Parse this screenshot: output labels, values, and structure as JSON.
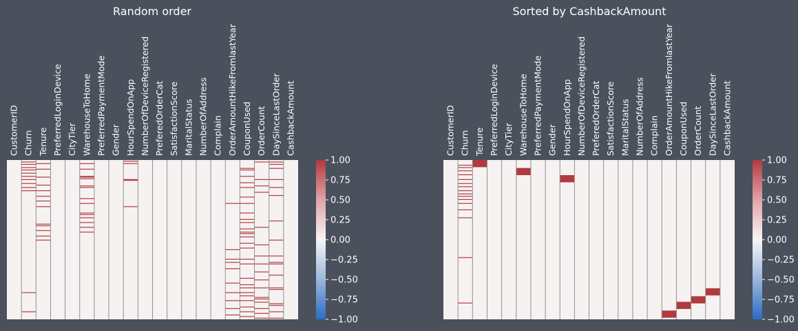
{
  "chart_data": [
    {
      "type": "heatmap",
      "title": "Random order",
      "columns": [
        "CustomerID",
        "Churn",
        "Tenure",
        "PreferredLoginDevice",
        "CityTier",
        "WarehouseToHome",
        "PreferredPaymentMode",
        "Gender",
        "HourSpendOnApp",
        "NumberOfDeviceRegistered",
        "PreferedOrderCat",
        "SatisfactionScore",
        "MaritalStatus",
        "NumberOfAddress",
        "Complain",
        "OrderAmountHikeFromlastYear",
        "CouponUsed",
        "OrderCount",
        "DaySinceLastOrder",
        "CashbackAmount"
      ],
      "row_range": [
        0,
        1
      ],
      "missing_rows": {
        "Churn": [
          0.01,
          0.025,
          0.045,
          0.06,
          0.08,
          0.1,
          0.12,
          0.145,
          0.17,
          0.19,
          0.83,
          0.95
        ],
        "Tenure": [
          0.02,
          0.055,
          0.105,
          0.155,
          0.19,
          0.225,
          0.255,
          0.29,
          0.4,
          0.41,
          0.44,
          0.475,
          0.5
        ],
        "WarehouseToHome": [
          0.02,
          0.055,
          0.1,
          0.105,
          0.115,
          0.16,
          0.17,
          0.24,
          0.27,
          0.33,
          0.34,
          0.36,
          0.39,
          0.42,
          0.45
        ],
        "HourSpendOnApp": [
          0.005,
          0.02,
          0.12,
          0.125,
          0.29
        ],
        "OrderAmountHikeFromlastYear": [
          0.27,
          0.56,
          0.62,
          0.64,
          0.68,
          0.77,
          0.83,
          0.88,
          0.93,
          0.97
        ],
        "CouponUsed": [
          0.05,
          0.06,
          0.1,
          0.14,
          0.17,
          0.23,
          0.27,
          0.33,
          0.37,
          0.39,
          0.43,
          0.45,
          0.46,
          0.48,
          0.52,
          0.55,
          0.62,
          0.65,
          0.74,
          0.78,
          0.8,
          0.83,
          0.85,
          0.88,
          0.92,
          0.95,
          0.98
        ],
        "OrderCount": [
          0.01,
          0.12,
          0.16,
          0.2,
          0.42,
          0.53,
          0.6,
          0.65,
          0.7,
          0.75,
          0.8,
          0.86,
          0.87,
          0.89,
          0.93,
          0.96,
          0.99
        ],
        "DaySinceLastOrder": [
          0.01,
          0.025,
          0.05,
          0.12,
          0.17,
          0.22,
          0.38,
          0.5,
          0.6,
          0.64,
          0.65,
          0.72,
          0.8,
          0.81,
          0.9,
          0.91,
          0.95,
          0.99
        ]
      },
      "colorbar": {
        "range": [
          -1,
          1
        ],
        "ticks": [
          "1.00",
          "0.75",
          "0.50",
          "0.25",
          "0.00",
          "−0.25",
          "−0.50",
          "−0.75",
          "−1.00"
        ]
      }
    },
    {
      "type": "heatmap",
      "title": "Sorted by CashbackAmount",
      "columns": [
        "CustomerID",
        "Churn",
        "Tenure",
        "PreferredLoginDevice",
        "CityTier",
        "WarehouseToHome",
        "PreferredPaymentMode",
        "Gender",
        "HourSpendOnApp",
        "NumberOfDeviceRegistered",
        "PreferedOrderCat",
        "SatisfactionScore",
        "MaritalStatus",
        "NumberOfAddress",
        "Complain",
        "OrderAmountHikeFromlastYear",
        "CouponUsed",
        "OrderCount",
        "DaySinceLastOrder",
        "CashbackAmount"
      ],
      "row_range": [
        0,
        1
      ],
      "missing_rows": {
        "Churn": [
          0.03,
          0.045,
          0.065,
          0.09,
          0.12,
          0.145,
          0.165,
          0.19,
          0.21,
          0.225,
          0.245,
          0.27,
          0.31,
          0.36,
          0.61,
          0.895
        ],
        "Tenure": [
          [
            0.0,
            0.045
          ]
        ],
        "WarehouseToHome": [
          [
            0.05,
            0.095
          ]
        ],
        "HourSpendOnApp": [
          [
            0.095,
            0.14
          ]
        ],
        "OrderAmountHikeFromlastYear": [
          [
            0.945,
            0.99
          ]
        ],
        "CouponUsed": [
          [
            0.89,
            0.935
          ]
        ],
        "OrderCount": [
          [
            0.855,
            0.9
          ]
        ],
        "DaySinceLastOrder": [
          [
            0.805,
            0.85
          ]
        ]
      },
      "colorbar": {
        "range": [
          -1,
          1
        ],
        "ticks": [
          "1.00",
          "0.75",
          "0.50",
          "0.25",
          "0.00",
          "−0.25",
          "−0.50",
          "−0.75",
          "−1.00"
        ]
      }
    }
  ],
  "colors": {
    "present": "#f7f2f2",
    "missing": "#b03a3f",
    "grid": "#8e8e8e",
    "background": "#4a505c"
  }
}
